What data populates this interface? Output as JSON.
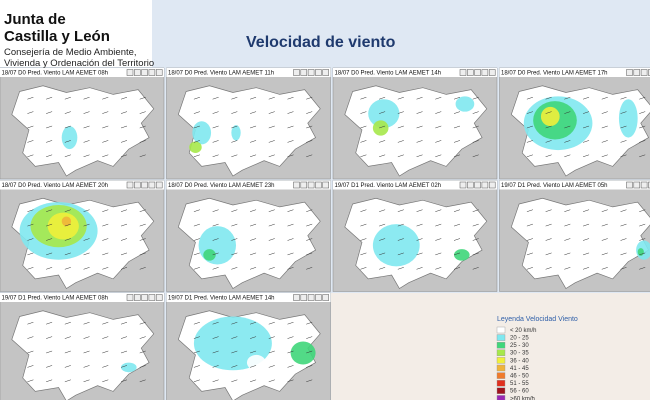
{
  "header": {
    "org_line1": "Junta de",
    "org_line2": "Castilla y León",
    "dept_line1": "Consejería de Medio Ambiente,",
    "dept_line2": "Vivienda y Ordenación del Territorio"
  },
  "page_title": "Velocidad de viento",
  "panels": [
    {
      "label": "18/07 D0 Pred. Viento LAM AEMET 08h"
    },
    {
      "label": "18/07 D0 Pred. Viento LAM AEMET 11h"
    },
    {
      "label": "18/07 D0 Pred. Viento LAM AEMET 14h"
    },
    {
      "label": "18/07 D0 Pred. Viento LAM AEMET 17h"
    },
    {
      "label": "18/07 D0 Pred. Viento LAM AEMET 20h"
    },
    {
      "label": "18/07 D0 Pred. Viento LAM AEMET 23h"
    },
    {
      "label": "19/07 D1 Pred. Viento LAM AEMET 02h"
    },
    {
      "label": "19/07 D1 Pred. Viento LAM AEMET 05h"
    },
    {
      "label": "19/07 D1 Pred. Viento LAM AEMET 08h"
    },
    {
      "label": "19/07 D1 Pred. Viento LAM AEMET 14h"
    }
  ],
  "legend": {
    "title": "Leyenda Velocidad Viento",
    "entries": [
      {
        "label": "< 20 km/h",
        "color": "#ffffff"
      },
      {
        "label": "20 - 25",
        "color": "#7fe8f0"
      },
      {
        "label": "25 - 30",
        "color": "#3fd67a"
      },
      {
        "label": "30 - 35",
        "color": "#a6e84a"
      },
      {
        "label": "36 - 40",
        "color": "#f0f03a"
      },
      {
        "label": "41 - 45",
        "color": "#f0b43a"
      },
      {
        "label": "46 - 50",
        "color": "#f07a2a"
      },
      {
        "label": "51 - 55",
        "color": "#e0301e"
      },
      {
        "label": "56 - 60",
        "color": "#a0141e"
      },
      {
        "label": ">60 km/h",
        "color": "#9a2ab4"
      }
    ]
  }
}
